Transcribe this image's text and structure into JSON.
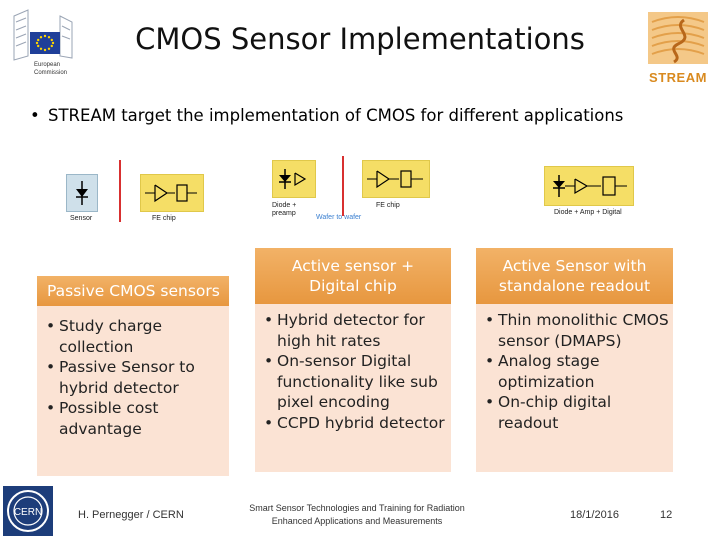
{
  "header": {
    "title": "CMOS Sensor Implementations",
    "ec_logo_lines": [
      "European",
      "Commission"
    ],
    "stream_logo": "STREAM"
  },
  "intro": {
    "bullet": "STREAM target the implementation of CMOS for different applications"
  },
  "diagrams": [
    {
      "labels": [
        "Sensor",
        "FE chip"
      ]
    },
    {
      "labels": [
        "Diode + preamp",
        "Wafer to wafer",
        "FE chip"
      ]
    },
    {
      "labels": [
        "Diode + Amp + Digital"
      ]
    }
  ],
  "columns": [
    {
      "heading": "Passive CMOS sensors",
      "items": [
        "Study charge collection",
        "Passive Sensor to hybrid detector",
        "Possible cost advantage"
      ]
    },
    {
      "heading": "Active sensor + Digital chip",
      "items": [
        "Hybrid detector for high hit rates",
        "On-sensor Digital functionality like sub pixel encoding",
        "CCPD hybrid detector"
      ]
    },
    {
      "heading": "Active Sensor with standalone readout",
      "items": [
        "Thin monolithic CMOS sensor (DMAPS)",
        "Analog stage optimization",
        "On-chip digital readout"
      ]
    }
  ],
  "footer": {
    "author": "H. Pernegger / CERN",
    "project_line1": "Smart Sensor Technologies and Training for Radiation",
    "project_line2": "Enhanced Applications and Measurements",
    "date": "18/1/2016",
    "page": "12",
    "cern_logo": "CERN"
  },
  "colors": {
    "heading_orange": "#e7973f",
    "body_peach": "#fbe3d4",
    "chip_yellow": "#f5de66",
    "stream_orange": "#d98a1f",
    "eu_blue": "#1f3f99"
  }
}
